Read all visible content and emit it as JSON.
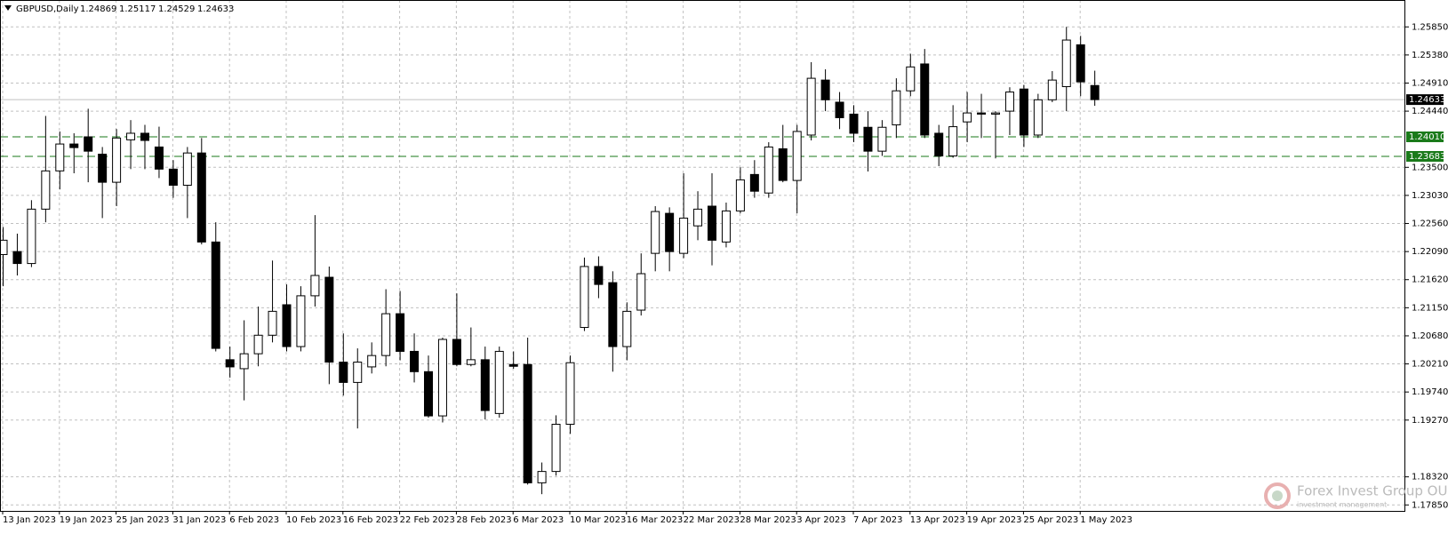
{
  "chart_data": {
    "type": "candlestick",
    "header": {
      "symbol": "GBPUSD,Daily",
      "ohlc": [
        1.24869,
        1.25117,
        1.24529,
        1.24633
      ]
    },
    "categories": [
      "13 Jan 2023",
      null,
      null,
      null,
      "19 Jan 2023",
      null,
      null,
      null,
      "25 Jan 2023",
      null,
      null,
      null,
      "31 Jan 2023",
      null,
      null,
      null,
      "6 Feb 2023",
      null,
      null,
      null,
      "10 Feb 2023",
      null,
      null,
      null,
      "16 Feb 2023",
      null,
      null,
      null,
      "22 Feb 2023",
      null,
      null,
      null,
      "28 Feb 2023",
      null,
      null,
      null,
      "6 Mar 2023",
      null,
      null,
      null,
      "10 Mar 2023",
      null,
      null,
      null,
      "16 Mar 2023",
      null,
      null,
      null,
      "22 Mar 2023",
      null,
      null,
      null,
      "28 Mar 2023",
      null,
      null,
      null,
      "3 Apr 2023",
      null,
      null,
      null,
      "7 Apr 2023",
      null,
      null,
      null,
      "13 Apr 2023",
      null,
      null,
      null,
      "19 Apr 2023",
      null,
      null,
      null,
      "25 Apr 2023",
      null,
      null,
      null,
      "1 May 2023",
      null
    ],
    "open": [
      1.2204,
      1.2209,
      1.2189,
      1.228,
      1.2344,
      1.2389,
      1.2401,
      1.2372,
      1.2325,
      1.2396,
      1.2407,
      1.2384,
      1.2347,
      1.232,
      1.2374,
      1.2225,
      1.2028,
      1.2013,
      1.2038,
      1.2069,
      1.212,
      1.205,
      1.2135,
      1.2166,
      1.2024,
      1.199,
      1.2016,
      1.2035,
      1.2105,
      1.2042,
      1.2008,
      1.1934,
      1.2062,
      1.202,
      1.2028,
      1.1938,
      1.202,
      1.202,
      1.1822,
      1.1841,
      1.192,
      1.2082,
      1.2184,
      1.2157,
      1.205,
      1.2111,
      1.2206,
      1.2273,
      1.2206,
      1.2252,
      1.2285,
      1.2225,
      1.2277,
      1.2338,
      1.2307,
      1.2381,
      1.2328,
      1.2404,
      1.2496,
      1.2459,
      1.2439,
      1.2417,
      1.2377,
      1.2421,
      1.2478,
      1.2523,
      1.2407,
      1.2369,
      1.2426,
      1.2441,
      1.2439,
      1.2444,
      1.2481,
      1.2404,
      1.2463,
      1.2485,
      1.2555,
      1.24869
    ],
    "high": [
      1.225,
      1.2239,
      1.2295,
      1.2436,
      1.241,
      1.2407,
      1.2448,
      1.2384,
      1.2414,
      1.2429,
      1.2421,
      1.2418,
      1.2362,
      1.2384,
      1.2399,
      1.2258,
      1.205,
      1.2094,
      1.2117,
      1.2194,
      1.2154,
      1.2151,
      1.227,
      1.2184,
      1.2072,
      1.2047,
      1.2057,
      1.2146,
      1.2143,
      1.2072,
      1.2035,
      1.2065,
      1.2139,
      1.2082,
      1.205,
      1.205,
      1.2042,
      1.2065,
      1.1856,
      1.1935,
      1.2035,
      1.2199,
      1.2201,
      1.2176,
      1.2124,
      1.2206,
      1.2285,
      1.2283,
      1.234,
      1.231,
      1.234,
      1.2291,
      1.235,
      1.2362,
      1.2392,
      1.2421,
      1.2421,
      1.2526,
      1.2514,
      1.2476,
      1.2454,
      1.2444,
      1.2429,
      1.2499,
      1.254,
      1.2548,
      1.2421,
      1.2454,
      1.2476,
      1.2473,
      1.2444,
      1.2484,
      1.2488,
      1.2473,
      1.2511,
      1.2585,
      1.257,
      1.25117
    ],
    "low": [
      1.2151,
      1.2169,
      1.2183,
      1.2258,
      1.2313,
      1.234,
      1.2325,
      1.2265,
      1.2285,
      1.2347,
      1.2347,
      1.2332,
      1.2299,
      1.2265,
      1.2221,
      1.2042,
      1.1998,
      1.196,
      1.2017,
      1.2057,
      1.2042,
      1.2042,
      1.2117,
      1.1987,
      1.1968,
      1.1913,
      1.2005,
      1.2017,
      1.2027,
      1.199,
      1.1931,
      1.1923,
      1.2017,
      1.2017,
      1.1928,
      1.1931,
      1.2013,
      1.1819,
      1.1803,
      1.1834,
      1.1904,
      1.2076,
      1.2131,
      1.2008,
      1.2027,
      1.2102,
      1.2176,
      1.2176,
      1.2198,
      1.2228,
      1.2186,
      1.2216,
      1.2273,
      1.2299,
      1.2299,
      1.2325,
      1.2273,
      1.2395,
      1.2444,
      1.2414,
      1.2392,
      1.2343,
      1.2369,
      1.2399,
      1.2469,
      1.2399,
      1.2352,
      1.2366,
      1.2392,
      1.2399,
      1.2365,
      1.2404,
      1.2384,
      1.2399,
      1.2459,
      1.2444,
      1.2469,
      1.24529
    ],
    "close": [
      1.2228,
      1.2189,
      1.228,
      1.2344,
      1.2389,
      1.2383,
      1.2377,
      1.2325,
      1.2399,
      1.2407,
      1.2395,
      1.2347,
      1.232,
      1.2374,
      1.2225,
      1.2047,
      1.2016,
      1.2038,
      1.2069,
      1.2109,
      1.205,
      1.2135,
      1.2169,
      1.2024,
      1.199,
      1.2024,
      1.2035,
      1.2105,
      1.2042,
      1.2008,
      1.1934,
      1.2062,
      1.202,
      1.2028,
      1.1943,
      1.2042,
      1.2017,
      1.1822,
      1.1841,
      1.192,
      1.2023,
      1.2184,
      1.2154,
      1.205,
      1.2109,
      1.2172,
      1.2276,
      1.2209,
      1.2265,
      1.228,
      1.2228,
      1.2277,
      1.2329,
      1.231,
      1.2384,
      1.2328,
      1.241,
      1.2499,
      1.2463,
      1.2433,
      1.2407,
      1.2377,
      1.2417,
      1.2478,
      1.2518,
      1.2404,
      1.2369,
      1.2418,
      1.2441,
      1.2439,
      1.2441,
      1.2476,
      1.2404,
      1.2463,
      1.2496,
      1.2563,
      1.2493,
      1.24633
    ],
    "bull_color": "#ffffff",
    "bear_color": "#000000",
    "ylim": [
      1.1775,
      1.263
    ],
    "yticks": [
      {
        "value": 1.2585,
        "label": "1.25850"
      },
      {
        "value": 1.2538,
        "label": "1.25380"
      },
      {
        "value": 1.2491,
        "label": "1.24910"
      },
      {
        "value": 1.2444,
        "label": "1.24440"
      },
      {
        "value": 1.235,
        "label": "1.23500"
      },
      {
        "value": 1.2303,
        "label": "1.23030"
      },
      {
        "value": 1.2256,
        "label": "1.22560"
      },
      {
        "value": 1.2209,
        "label": "1.22090"
      },
      {
        "value": 1.2162,
        "label": "1.21620"
      },
      {
        "value": 1.2115,
        "label": "1.21150"
      },
      {
        "value": 1.2068,
        "label": "1.20680"
      },
      {
        "value": 1.2021,
        "label": "1.20210"
      },
      {
        "value": 1.1974,
        "label": "1.19740"
      },
      {
        "value": 1.1927,
        "label": "1.19270"
      },
      {
        "value": 1.1832,
        "label": "1.18320"
      },
      {
        "value": 1.1785,
        "label": "1.17850"
      }
    ],
    "price_lines": [
      {
        "value": 1.24633,
        "color": "#c0c0c0",
        "dashed": false,
        "label_bg": "#000000"
      },
      {
        "value": {
          "value": 1.2401,
          "label": "1.24010"
        },
        "color": "#1a7a1a",
        "dashed": true,
        "label_bg": "#1a7a1a"
      },
      {
        "value": 1.23683,
        "color": "#1a7a1a",
        "dashed": true,
        "label_bg": "#1a7a1a"
      }
    ],
    "grid": true,
    "watermark": {
      "title": "Forex Invest Group OU",
      "subtitle": "investment management"
    }
  }
}
